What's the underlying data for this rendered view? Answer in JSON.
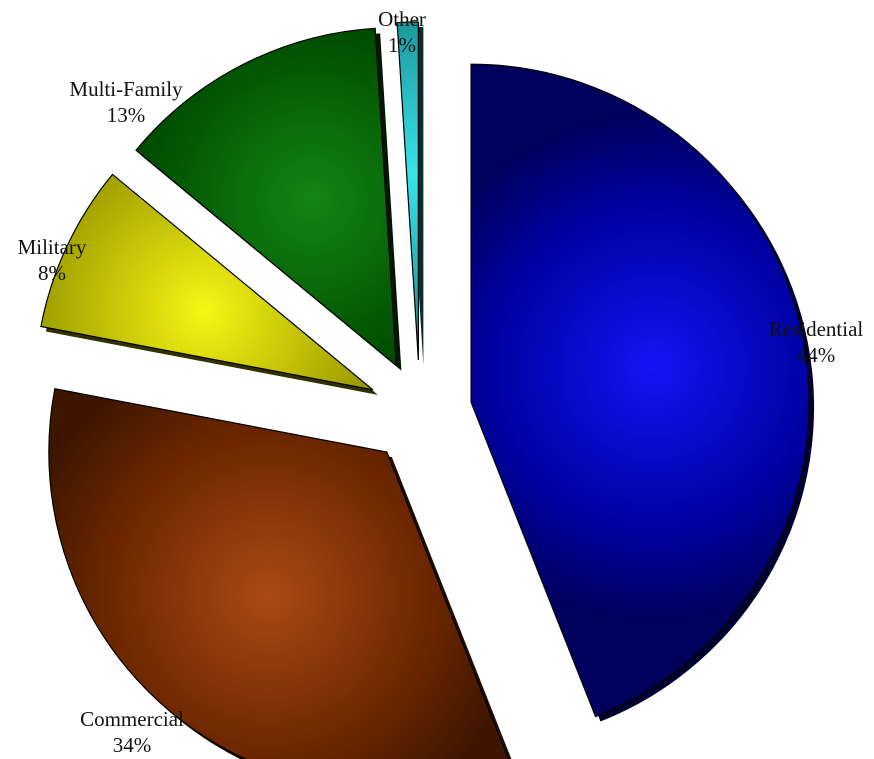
{
  "chart_data": {
    "type": "pie",
    "exploded": true,
    "shading": "3d-gradient",
    "slices": [
      {
        "label": "Residential",
        "value": 44,
        "value_label": "44%",
        "color": "#0000f5"
      },
      {
        "label": "Commercial",
        "value": 34,
        "value_label": "34%",
        "color": "#a33a00"
      },
      {
        "label": "Military",
        "value": 8,
        "value_label": "8%",
        "color": "#f5f500"
      },
      {
        "label": "Multi-Family",
        "value": 13,
        "value_label": "13%",
        "color": "#007a00"
      },
      {
        "label": "Other",
        "value": 1,
        "value_label": "1%",
        "color": "#28e0e8"
      }
    ]
  }
}
